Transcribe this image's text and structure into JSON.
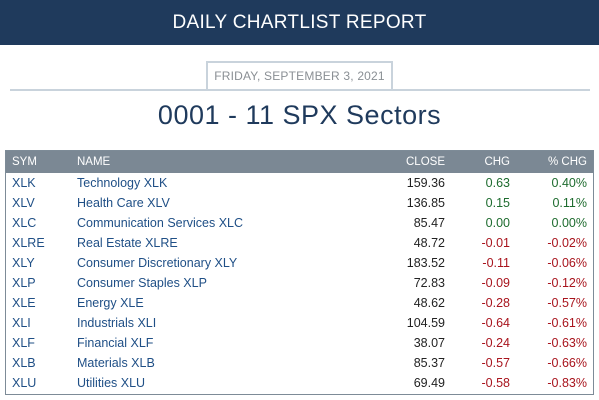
{
  "header": {
    "title": "DAILY CHARTLIST REPORT"
  },
  "report": {
    "date": "FRIDAY, SEPTEMBER 3, 2021",
    "title": "0001 - 11 SPX Sectors"
  },
  "table": {
    "columns": [
      "SYM",
      "NAME",
      "CLOSE",
      "CHG",
      "% CHG"
    ],
    "rows": [
      {
        "sym": "XLK",
        "name": "Technology XLK",
        "close": "159.36",
        "chg": "0.63",
        "pct": "0.40%",
        "dir": "pos"
      },
      {
        "sym": "XLV",
        "name": "Health Care XLV",
        "close": "136.85",
        "chg": "0.15",
        "pct": "0.11%",
        "dir": "pos"
      },
      {
        "sym": "XLC",
        "name": "Communication Services XLC",
        "close": "85.47",
        "chg": "0.00",
        "pct": "0.00%",
        "dir": "pos"
      },
      {
        "sym": "XLRE",
        "name": "Real Estate XLRE",
        "close": "48.72",
        "chg": "-0.01",
        "pct": "-0.02%",
        "dir": "neg"
      },
      {
        "sym": "XLY",
        "name": "Consumer Discretionary XLY",
        "close": "183.52",
        "chg": "-0.11",
        "pct": "-0.06%",
        "dir": "neg"
      },
      {
        "sym": "XLP",
        "name": "Consumer Staples XLP",
        "close": "72.83",
        "chg": "-0.09",
        "pct": "-0.12%",
        "dir": "neg"
      },
      {
        "sym": "XLE",
        "name": "Energy XLE",
        "close": "48.62",
        "chg": "-0.28",
        "pct": "-0.57%",
        "dir": "neg"
      },
      {
        "sym": "XLI",
        "name": "Industrials XLI",
        "close": "104.59",
        "chg": "-0.64",
        "pct": "-0.61%",
        "dir": "neg"
      },
      {
        "sym": "XLF",
        "name": "Financial XLF",
        "close": "38.07",
        "chg": "-0.24",
        "pct": "-0.63%",
        "dir": "neg"
      },
      {
        "sym": "XLB",
        "name": "Materials XLB",
        "close": "85.37",
        "chg": "-0.57",
        "pct": "-0.66%",
        "dir": "neg"
      },
      {
        "sym": "XLU",
        "name": "Utilities XLU",
        "close": "69.49",
        "chg": "-0.58",
        "pct": "-0.83%",
        "dir": "neg"
      }
    ]
  },
  "colors": {
    "banner": "#1f3a5c",
    "header_row": "#7b8894",
    "positive": "#1d6b2e",
    "negative": "#a8141d",
    "symbol_link": "#1f4f86"
  }
}
